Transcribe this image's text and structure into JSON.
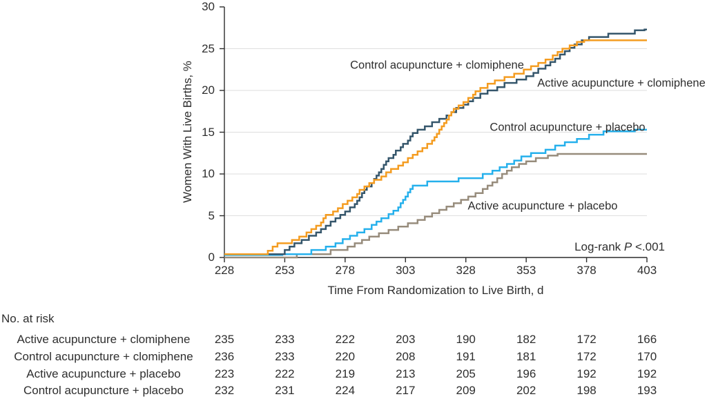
{
  "chart_data": {
    "type": "line",
    "subtype": "kaplan-meier-step",
    "title": "",
    "xlabel": "Time From Randomization to Live Birth, d",
    "ylabel": "Women With Live Births, %",
    "xlim": [
      228,
      403
    ],
    "ylim": [
      0,
      30
    ],
    "x_ticks": [
      228,
      253,
      278,
      303,
      328,
      353,
      378,
      403
    ],
    "y_ticks": [
      0,
      5,
      10,
      15,
      20,
      25,
      30
    ],
    "gridlines": [
      5,
      10,
      15,
      20,
      25
    ],
    "grid_color": "#dedede",
    "axis_color": "#2b2b2b",
    "annotation": {
      "prefix": "Log-rank ",
      "italic": "P",
      "suffix": " <.001"
    },
    "series": [
      {
        "id": "active-acupuncture-clomiphene",
        "label": "Active acupuncture + clomiphene",
        "color": "#35566B",
        "points": [
          [
            228,
            0.4
          ],
          [
            253,
            0.9
          ],
          [
            255,
            1.3
          ],
          [
            257,
            1.7
          ],
          [
            260,
            2.1
          ],
          [
            263,
            2.6
          ],
          [
            266,
            3.0
          ],
          [
            268,
            3.4
          ],
          [
            270,
            3.8
          ],
          [
            272,
            4.3
          ],
          [
            274,
            4.7
          ],
          [
            276,
            5.1
          ],
          [
            278,
            5.5
          ],
          [
            280,
            6.0
          ],
          [
            282,
            6.4
          ],
          [
            283,
            6.8
          ],
          [
            284,
            7.2
          ],
          [
            285,
            7.7
          ],
          [
            286,
            8.1
          ],
          [
            287,
            8.5
          ],
          [
            289,
            8.9
          ],
          [
            290,
            9.4
          ],
          [
            291,
            9.8
          ],
          [
            292,
            10.2
          ],
          [
            293,
            10.6
          ],
          [
            294,
            11.1
          ],
          [
            295,
            11.5
          ],
          [
            296,
            11.9
          ],
          [
            298,
            12.3
          ],
          [
            299,
            12.8
          ],
          [
            301,
            13.2
          ],
          [
            302,
            13.6
          ],
          [
            304,
            14.0
          ],
          [
            305,
            14.5
          ],
          [
            306,
            14.9
          ],
          [
            308,
            15.3
          ],
          [
            311,
            15.7
          ],
          [
            314,
            16.2
          ],
          [
            317,
            16.6
          ],
          [
            320,
            17.0
          ],
          [
            322,
            17.4
          ],
          [
            324,
            17.9
          ],
          [
            327,
            18.3
          ],
          [
            329,
            18.7
          ],
          [
            331,
            19.1
          ],
          [
            334,
            19.6
          ],
          [
            337,
            20.0
          ],
          [
            341,
            20.4
          ],
          [
            344,
            20.9
          ],
          [
            349,
            21.3
          ],
          [
            353,
            21.7
          ],
          [
            356,
            22.1
          ],
          [
            358,
            22.6
          ],
          [
            361,
            23.0
          ],
          [
            363,
            23.4
          ],
          [
            365,
            23.8
          ],
          [
            367,
            24.3
          ],
          [
            369,
            24.7
          ],
          [
            371,
            25.1
          ],
          [
            373,
            25.5
          ],
          [
            376,
            26.0
          ],
          [
            379,
            26.4
          ],
          [
            387,
            26.8
          ],
          [
            398,
            27.2
          ],
          [
            402,
            27.3
          ]
        ]
      },
      {
        "id": "control-acupuncture-clomiphene",
        "label": "Control acupuncture + clomiphene",
        "color": "#F49C20",
        "points": [
          [
            228,
            0.4
          ],
          [
            246,
            0.8
          ],
          [
            248,
            1.3
          ],
          [
            250,
            1.7
          ],
          [
            256,
            2.1
          ],
          [
            259,
            2.5
          ],
          [
            262,
            3.0
          ],
          [
            264,
            3.4
          ],
          [
            266,
            3.8
          ],
          [
            268,
            4.2
          ],
          [
            269,
            4.7
          ],
          [
            270,
            5.1
          ],
          [
            273,
            5.5
          ],
          [
            275,
            5.9
          ],
          [
            277,
            6.4
          ],
          [
            279,
            6.8
          ],
          [
            281,
            7.2
          ],
          [
            283,
            7.6
          ],
          [
            284,
            8.1
          ],
          [
            286,
            8.5
          ],
          [
            288,
            8.9
          ],
          [
            290,
            9.3
          ],
          [
            293,
            9.7
          ],
          [
            295,
            10.2
          ],
          [
            297,
            10.6
          ],
          [
            300,
            11.0
          ],
          [
            302,
            11.4
          ],
          [
            304,
            11.9
          ],
          [
            306,
            12.3
          ],
          [
            308,
            12.7
          ],
          [
            310,
            13.1
          ],
          [
            312,
            13.6
          ],
          [
            314,
            14.0
          ],
          [
            315,
            14.4
          ],
          [
            316,
            14.8
          ],
          [
            317,
            15.3
          ],
          [
            318,
            15.7
          ],
          [
            319,
            16.1
          ],
          [
            320,
            16.5
          ],
          [
            321,
            17.0
          ],
          [
            322,
            17.4
          ],
          [
            323,
            17.8
          ],
          [
            325,
            18.2
          ],
          [
            327,
            18.6
          ],
          [
            329,
            19.1
          ],
          [
            331,
            19.5
          ],
          [
            332,
            19.9
          ],
          [
            334,
            20.3
          ],
          [
            337,
            20.8
          ],
          [
            340,
            21.2
          ],
          [
            344,
            21.6
          ],
          [
            348,
            22.0
          ],
          [
            352,
            22.5
          ],
          [
            355,
            22.9
          ],
          [
            358,
            23.3
          ],
          [
            361,
            23.7
          ],
          [
            364,
            24.2
          ],
          [
            366,
            24.6
          ],
          [
            368,
            25.0
          ],
          [
            371,
            25.4
          ],
          [
            374,
            25.8
          ],
          [
            377,
            26.0
          ]
        ]
      },
      {
        "id": "active-acupuncture-placebo",
        "label": "Active acupuncture + placebo",
        "color": "#978C7C",
        "points": [
          [
            228,
            0.0
          ],
          [
            258,
            0.4
          ],
          [
            272,
            0.9
          ],
          [
            279,
            1.3
          ],
          [
            282,
            1.7
          ],
          [
            285,
            2.1
          ],
          [
            288,
            2.5
          ],
          [
            292,
            2.9
          ],
          [
            296,
            3.3
          ],
          [
            300,
            3.7
          ],
          [
            304,
            4.1
          ],
          [
            308,
            4.5
          ],
          [
            311,
            4.9
          ],
          [
            314,
            5.3
          ],
          [
            317,
            5.7
          ],
          [
            320,
            6.1
          ],
          [
            323,
            6.5
          ],
          [
            326,
            6.9
          ],
          [
            329,
            7.3
          ],
          [
            332,
            7.7
          ],
          [
            335,
            8.2
          ],
          [
            337,
            8.6
          ],
          [
            339,
            9.0
          ],
          [
            341,
            9.5
          ],
          [
            343,
            10.0
          ],
          [
            345,
            10.4
          ],
          [
            347,
            10.8
          ],
          [
            350,
            11.2
          ],
          [
            353,
            11.5
          ],
          [
            357,
            11.9
          ],
          [
            362,
            12.2
          ],
          [
            366,
            12.4
          ]
        ]
      },
      {
        "id": "control-acupuncture-placebo",
        "label": "Control acupuncture + placebo",
        "color": "#25B0EC",
        "points": [
          [
            228,
            0.3
          ],
          [
            252,
            0.4
          ],
          [
            264,
            0.9
          ],
          [
            270,
            1.3
          ],
          [
            274,
            1.7
          ],
          [
            277,
            2.2
          ],
          [
            280,
            2.6
          ],
          [
            283,
            3.0
          ],
          [
            286,
            3.4
          ],
          [
            289,
            3.9
          ],
          [
            291,
            4.3
          ],
          [
            293,
            4.7
          ],
          [
            296,
            5.2
          ],
          [
            298,
            5.6
          ],
          [
            300,
            6.0
          ],
          [
            301,
            6.5
          ],
          [
            302,
            6.9
          ],
          [
            303,
            7.3
          ],
          [
            304,
            7.8
          ],
          [
            305,
            8.2
          ],
          [
            306,
            8.6
          ],
          [
            312,
            9.1
          ],
          [
            325,
            9.5
          ],
          [
            335,
            10.0
          ],
          [
            339,
            10.4
          ],
          [
            342,
            10.8
          ],
          [
            345,
            11.2
          ],
          [
            348,
            11.6
          ],
          [
            351,
            12.1
          ],
          [
            355,
            12.5
          ],
          [
            361,
            12.9
          ],
          [
            365,
            13.4
          ],
          [
            369,
            13.8
          ],
          [
            374,
            14.2
          ],
          [
            379,
            14.7
          ],
          [
            385,
            15.1
          ],
          [
            398,
            15.3
          ]
        ]
      }
    ]
  },
  "risk_table": {
    "title": "No. at risk",
    "rows": [
      {
        "label": "Active acupuncture + clomiphene",
        "values": [
          235,
          233,
          222,
          203,
          190,
          182,
          172,
          166
        ]
      },
      {
        "label": "Control acupuncture + clomiphene",
        "values": [
          236,
          233,
          220,
          208,
          191,
          181,
          172,
          170
        ]
      },
      {
        "label": "Active acupuncture + placebo",
        "values": [
          223,
          222,
          219,
          213,
          205,
          196,
          192,
          192
        ]
      },
      {
        "label": "Control acupuncture + placebo",
        "values": [
          232,
          231,
          224,
          217,
          209,
          202,
          198,
          193
        ]
      }
    ]
  }
}
